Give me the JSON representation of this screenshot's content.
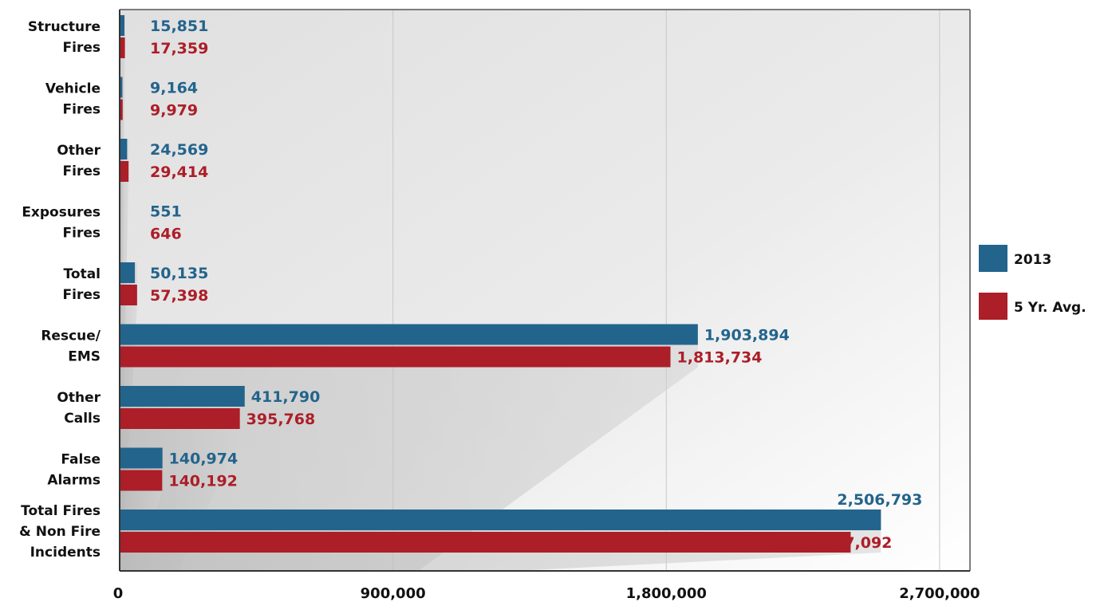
{
  "chart_data": {
    "type": "bar",
    "orientation": "horizontal",
    "categories": [
      [
        "Structure",
        "Fires"
      ],
      [
        "Vehicle",
        "Fires"
      ],
      [
        "Other",
        "Fires"
      ],
      [
        "Exposures",
        "Fires"
      ],
      [
        "Total",
        "Fires"
      ],
      [
        "Rescue/",
        "EMS"
      ],
      [
        "Other",
        "Calls"
      ],
      [
        "False",
        "Alarms"
      ],
      [
        "Total Fires",
        "& Non Fire",
        "Incidents"
      ]
    ],
    "series": [
      {
        "name": "2013",
        "color": "#23648c",
        "values": [
          15851,
          9164,
          24569,
          551,
          50135,
          1903894,
          411790,
          140974,
          2506793
        ],
        "labels": [
          "15,851",
          "9,164",
          "24,569",
          "551",
          "50,135",
          "1,903,894",
          "411,790",
          "140,974",
          "2,506,793"
        ]
      },
      {
        "name": "5 Yr. Avg.",
        "color": "#ac1e28",
        "values": [
          17359,
          9979,
          29414,
          646,
          57398,
          1813734,
          395768,
          140192,
          2407092
        ],
        "labels": [
          "17,359",
          "9,979",
          "29,414",
          "646",
          "57,398",
          "1,813,734",
          "395,768",
          "140,192",
          "2,407,092"
        ]
      }
    ],
    "xlim": [
      0,
      2800000
    ],
    "xticks": [
      0,
      900000,
      1800000,
      2700000
    ],
    "xtick_labels": [
      "0",
      "900,000",
      "1,800,000",
      "2,700,000"
    ],
    "grid": true,
    "legend_position": "right",
    "title": "",
    "xlabel": "",
    "ylabel": ""
  }
}
